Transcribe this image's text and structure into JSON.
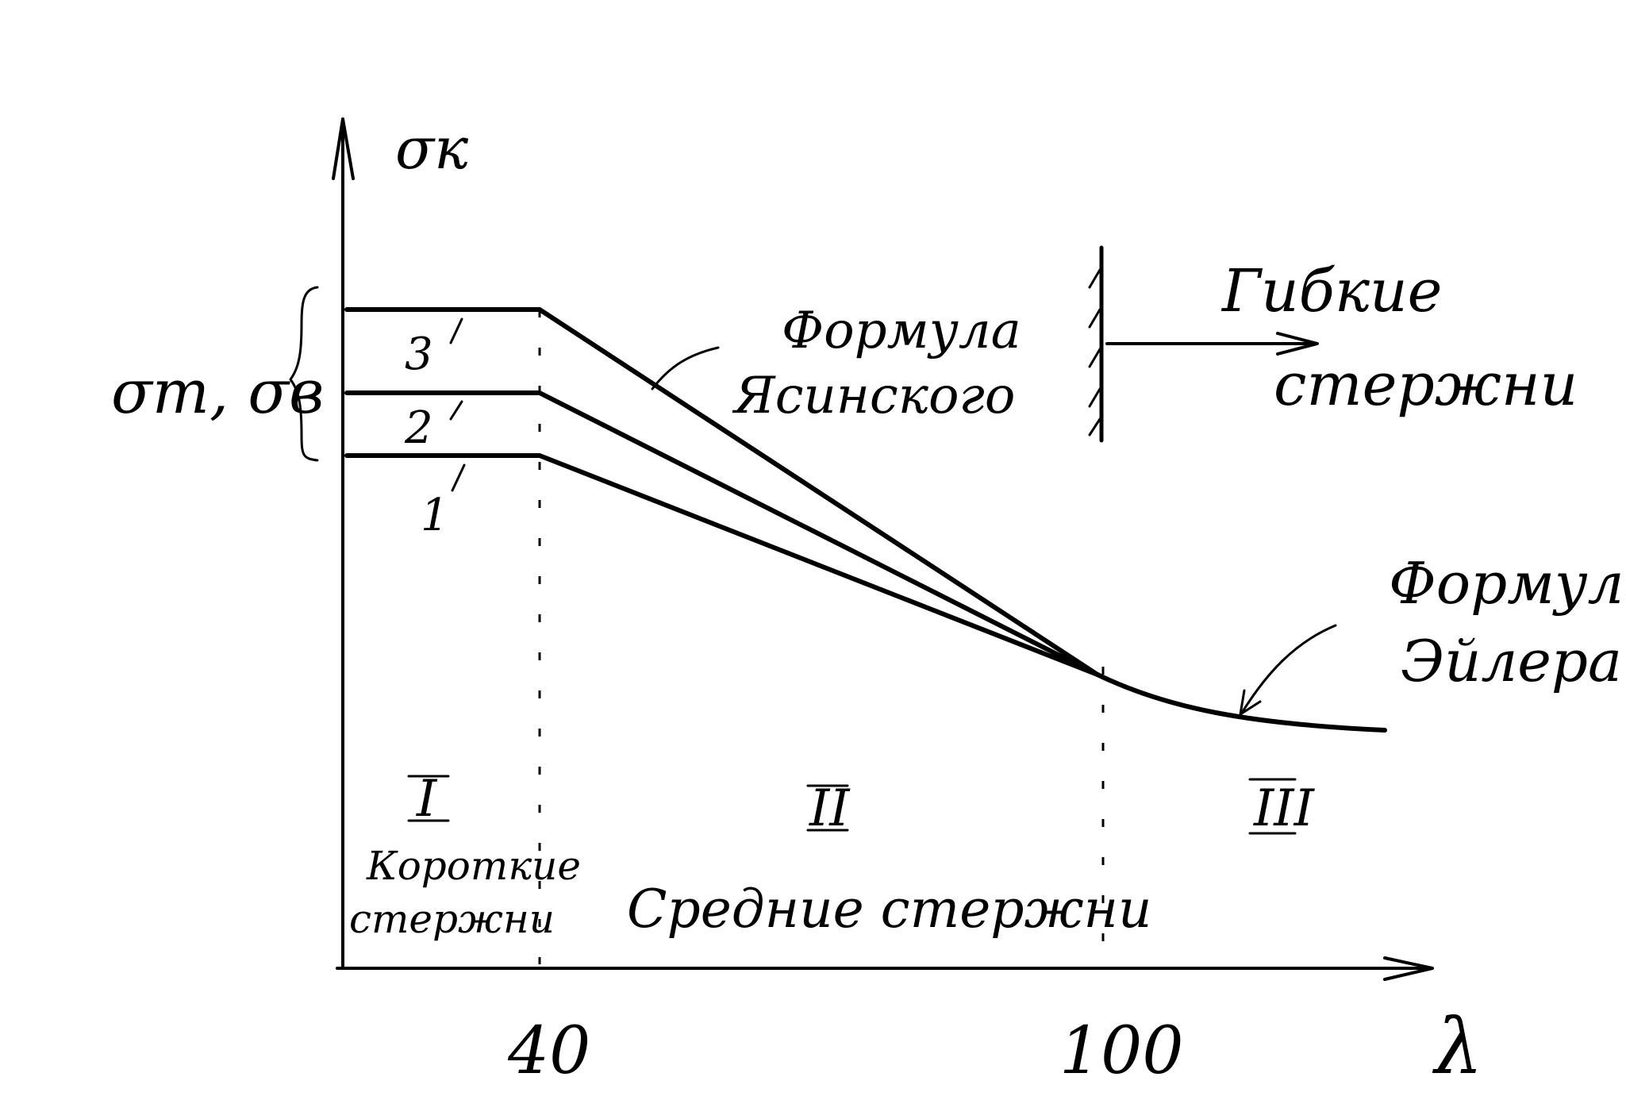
{
  "diagram": {
    "axis_y_label": "σк",
    "axis_x_label": "λ",
    "stress_label": "σт, σв",
    "tick_40": "40",
    "tick_100": "100",
    "curve_labels": [
      "3",
      "2",
      "1"
    ],
    "zones": [
      {
        "numeral": "I",
        "caption_line1": "Короткие",
        "caption_line2": "стержни"
      },
      {
        "numeral": "II",
        "caption_line1": "Средние стержни",
        "caption_line2": ""
      },
      {
        "numeral": "III",
        "caption_line1": "",
        "caption_line2": ""
      }
    ],
    "flexible_line1": "Гибкие",
    "flexible_line2": "стержни",
    "yasinsky_line1": "Формула",
    "yasinsky_line2": "Ясинского",
    "euler_line1": "Формула",
    "euler_line2": "Эйлера"
  }
}
